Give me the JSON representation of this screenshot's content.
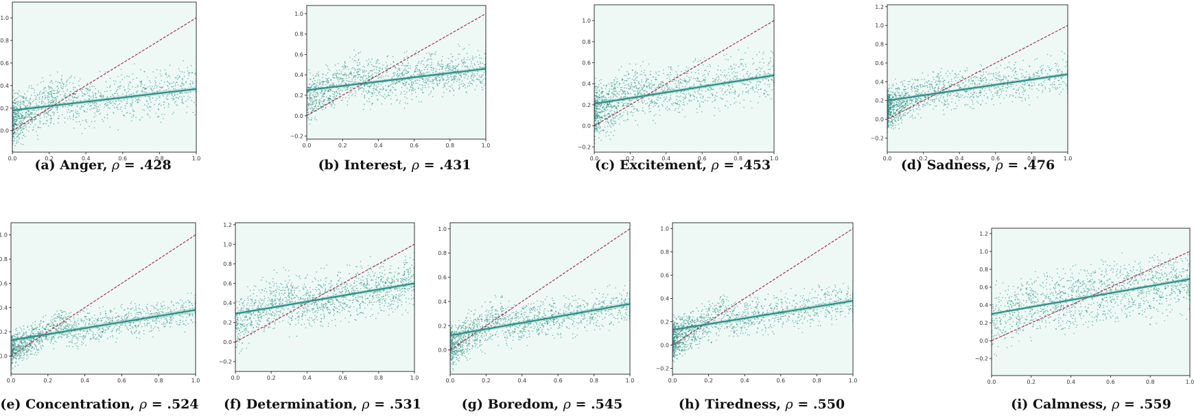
{
  "colors": {
    "background": "#eef9f5",
    "points": "#2a8a80",
    "regression": "#2f8f86",
    "identity": "#a0304f",
    "axes": "#333333"
  },
  "chart_data": [
    {
      "type": "scatter",
      "id": "a",
      "label": "(a)",
      "title": "Anger",
      "rho_symbol": "ρ",
      "rho_text": "= .428",
      "xlim": [
        0,
        1
      ],
      "ylim": [
        -0.19,
        1.14
      ],
      "xticks": [
        "0.0",
        "0.2",
        "0.4",
        "0.6",
        "0.8",
        "1.0"
      ],
      "yticks": [
        "0.0",
        "0.2",
        "0.4",
        "0.6",
        "0.8",
        "1.0"
      ],
      "regression": {
        "x": [
          0,
          1
        ],
        "y": [
          0.18,
          0.37
        ]
      },
      "identity": {
        "x": [
          0,
          1
        ],
        "y": [
          0,
          1
        ]
      },
      "approx_points": 1500,
      "x_skew": 2.2,
      "noise": 0.13
    },
    {
      "type": "scatter",
      "id": "b",
      "label": "(b)",
      "title": "Interest",
      "rho_symbol": "ρ",
      "rho_text": "= .431",
      "xlim": [
        0,
        1
      ],
      "ylim": [
        -0.23,
        1.08
      ],
      "xticks": [
        "0.0",
        "0.2",
        "0.4",
        "0.6",
        "0.8",
        "1.0"
      ],
      "yticks": [
        "-0.2",
        "0.0",
        "0.2",
        "0.4",
        "0.6",
        "0.8",
        "1.0"
      ],
      "regression": {
        "x": [
          0,
          1
        ],
        "y": [
          0.25,
          0.46
        ]
      },
      "identity": {
        "x": [
          0,
          1
        ],
        "y": [
          0,
          1
        ]
      },
      "approx_points": 1500,
      "x_skew": 1.3,
      "noise": 0.13
    },
    {
      "type": "scatter",
      "id": "c",
      "label": "(c)",
      "title": "Excitement",
      "rho_symbol": "ρ",
      "rho_text": "= .453",
      "xlim": [
        0,
        1
      ],
      "ylim": [
        -0.25,
        1.15
      ],
      "xticks": [
        "0.0",
        "0.2",
        "0.4",
        "0.6",
        "0.8",
        "1.0"
      ],
      "yticks": [
        "-0.2",
        "0.0",
        "0.2",
        "0.4",
        "0.6",
        "0.8",
        "1.0"
      ],
      "regression": {
        "x": [
          0,
          1
        ],
        "y": [
          0.21,
          0.48
        ]
      },
      "identity": {
        "x": [
          0,
          1
        ],
        "y": [
          0,
          1
        ]
      },
      "approx_points": 1500,
      "x_skew": 2.0,
      "noise": 0.15
    },
    {
      "type": "scatter",
      "id": "d",
      "label": "(d)",
      "title": "Sadness",
      "rho_symbol": "ρ",
      "rho_text": "= .476",
      "xlim": [
        0,
        1
      ],
      "ylim": [
        -0.35,
        1.22
      ],
      "xticks": [
        "0.0",
        "0.2",
        "0.4",
        "0.6",
        "0.8",
        "1.0"
      ],
      "yticks": [
        "-0.2",
        "0.0",
        "0.2",
        "0.4",
        "0.6",
        "0.8",
        "1.0",
        "1.2"
      ],
      "regression": {
        "x": [
          0,
          1
        ],
        "y": [
          0.2,
          0.48
        ]
      },
      "identity": {
        "x": [
          0,
          1
        ],
        "y": [
          0,
          1
        ]
      },
      "approx_points": 1500,
      "x_skew": 2.3,
      "noise": 0.13
    },
    {
      "type": "scatter",
      "id": "e",
      "label": "(e)",
      "title": "Concentration",
      "rho_symbol": "ρ",
      "rho_text": "= .524",
      "xlim": [
        0,
        1
      ],
      "ylim": [
        -0.15,
        1.1
      ],
      "xticks": [
        "0.0",
        "0.2",
        "0.4",
        "0.6",
        "0.8",
        "1.0"
      ],
      "yticks": [
        "0.0",
        "0.2",
        "0.4",
        "0.6",
        "0.8",
        "1.0"
      ],
      "regression": {
        "x": [
          0,
          1
        ],
        "y": [
          0.13,
          0.38
        ]
      },
      "identity": {
        "x": [
          0,
          1
        ],
        "y": [
          0,
          1
        ]
      },
      "approx_points": 1500,
      "x_skew": 2.0,
      "noise": 0.08
    },
    {
      "type": "scatter",
      "id": "f",
      "label": "(f)",
      "title": "Determination",
      "rho_symbol": "ρ",
      "rho_text": "= .531",
      "xlim": [
        0,
        1
      ],
      "ylim": [
        -0.3,
        1.22
      ],
      "xticks": [
        "0.0",
        "0.2",
        "0.4",
        "0.6",
        "0.8",
        "1.0"
      ],
      "yticks": [
        "-0.2",
        "0.0",
        "0.2",
        "0.4",
        "0.6",
        "0.8",
        "1.0",
        "1.2"
      ],
      "regression": {
        "x": [
          0,
          1
        ],
        "y": [
          0.29,
          0.6
        ]
      },
      "identity": {
        "x": [
          0,
          1
        ],
        "y": [
          0,
          1
        ]
      },
      "approx_points": 1500,
      "x_skew": 1.1,
      "noise": 0.16
    },
    {
      "type": "scatter",
      "id": "g",
      "label": "(g)",
      "title": "Boredom",
      "rho_symbol": "ρ",
      "rho_text": "= .545",
      "xlim": [
        0,
        1
      ],
      "ylim": [
        -0.2,
        1.05
      ],
      "xticks": [
        "0.0",
        "0.2",
        "0.4",
        "0.6",
        "0.8",
        "1.0"
      ],
      "yticks": [
        "0.0",
        "0.2",
        "0.4",
        "0.6",
        "0.8",
        "1.0"
      ],
      "regression": {
        "x": [
          0,
          1
        ],
        "y": [
          0.12,
          0.38
        ]
      },
      "identity": {
        "x": [
          0,
          1
        ],
        "y": [
          0,
          1
        ]
      },
      "approx_points": 1500,
      "x_skew": 2.0,
      "noise": 0.1
    },
    {
      "type": "scatter",
      "id": "h",
      "label": "(h)",
      "title": "Tiredness",
      "rho_symbol": "ρ",
      "rho_text": "= .550",
      "xlim": [
        0,
        1
      ],
      "ylim": [
        -0.25,
        1.05
      ],
      "xticks": [
        "0.0",
        "0.2",
        "0.4",
        "0.6",
        "0.8",
        "1.0"
      ],
      "yticks": [
        "-0.2",
        "0.0",
        "0.2",
        "0.4",
        "0.6",
        "0.8",
        "1.0"
      ],
      "regression": {
        "x": [
          0,
          1
        ],
        "y": [
          0.13,
          0.38
        ]
      },
      "identity": {
        "x": [
          0,
          1
        ],
        "y": [
          0,
          1
        ]
      },
      "approx_points": 1500,
      "x_skew": 2.2,
      "noise": 0.1
    },
    {
      "type": "scatter",
      "id": "i",
      "label": "(i)",
      "title": "Calmness",
      "rho_symbol": "ρ",
      "rho_text": "= .559",
      "xlim": [
        0,
        1
      ],
      "ylim": [
        -0.39,
        1.26
      ],
      "xticks": [
        "0.0",
        "0.2",
        "0.4",
        "0.6",
        "0.8",
        "1.0"
      ],
      "yticks": [
        "-0.2",
        "0.0",
        "0.2",
        "0.4",
        "0.6",
        "0.8",
        "1.0",
        "1.2"
      ],
      "regression": {
        "x": [
          0,
          1
        ],
        "y": [
          0.3,
          0.69
        ]
      },
      "identity": {
        "x": [
          0,
          1
        ],
        "y": [
          0,
          1
        ]
      },
      "approx_points": 1500,
      "x_skew": 1.0,
      "noise": 0.2
    }
  ]
}
